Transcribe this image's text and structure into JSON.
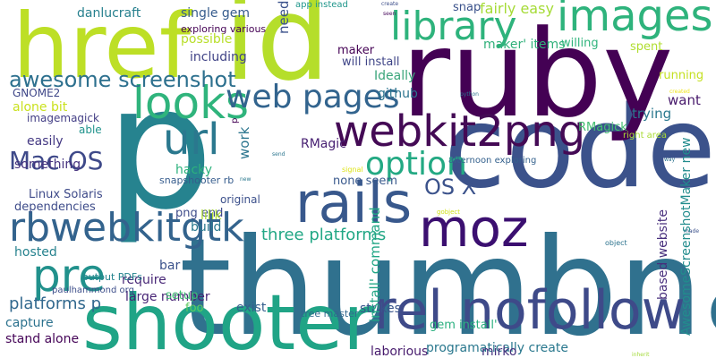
{
  "words": [
    {
      "text": "thumbnail",
      "color": "#30718e"
    },
    {
      "text": "code",
      "color": "#3b528b"
    },
    {
      "text": "ruby",
      "color": "#440154"
    },
    {
      "text": "p",
      "color": "#26838f"
    },
    {
      "text": "shooter",
      "color": "#20a486"
    },
    {
      "text": "id",
      "color": "#b5de2b"
    },
    {
      "text": "href",
      "color": "#bddf26"
    },
    {
      "text": "rel nofollow",
      "color": "#3e4a89"
    },
    {
      "text": "webkit2png",
      "color": "#440a55"
    },
    {
      "text": "images",
      "color": "#2eb37c"
    },
    {
      "text": "library",
      "color": "#2eb37c"
    },
    {
      "text": "url",
      "color": "#2a788e"
    },
    {
      "text": "looks",
      "color": "#2fb47c"
    },
    {
      "text": "rails",
      "color": "#38588c"
    },
    {
      "text": "moz",
      "color": "#3b0f70"
    },
    {
      "text": "rbwebkitgtk",
      "color": "#33638d"
    },
    {
      "text": "pre",
      "color": "#21918c"
    },
    {
      "text": "web pages",
      "color": "#32648e"
    },
    {
      "text": "option",
      "color": "#23a983"
    },
    {
      "text": "awesome screenshot",
      "color": "#2d708e"
    },
    {
      "text": "Mac OS",
      "color": "#3e4989"
    },
    {
      "text": "OS X",
      "color": "#3b528b"
    },
    {
      "text": "three platforms",
      "color": "#22a785"
    },
    {
      "text": "platforms p",
      "color": "#31688e"
    },
    {
      "text": "snap",
      "color": "#3b528b"
    },
    {
      "text": "fairly easy",
      "color": "#a5db36"
    },
    {
      "text": "danlucraft",
      "color": "#27808e"
    },
    {
      "text": "single gem",
      "color": "#365c8d"
    },
    {
      "text": "exploring various",
      "color": "#440154"
    },
    {
      "text": "possible",
      "color": "#b8de29"
    },
    {
      "text": "including",
      "color": "#414487"
    },
    {
      "text": "maker",
      "color": "#440154"
    },
    {
      "text": "maker' items",
      "color": "#30b07a"
    },
    {
      "text": "will install",
      "color": "#404688"
    },
    {
      "text": "Ideally",
      "color": "#3ba67b"
    },
    {
      "text": "github",
      "color": "#2b748e"
    },
    {
      "text": "willing",
      "color": "#2fb47c"
    },
    {
      "text": "spent",
      "color": "#b0dd2f"
    },
    {
      "text": "running",
      "color": "#c4e021"
    },
    {
      "text": "want",
      "color": "#481a6c"
    },
    {
      "text": "trying",
      "color": "#2a788e"
    },
    {
      "text": "RMagick",
      "color": "#43bf71"
    },
    {
      "text": "GNOME2",
      "color": "#3f4788"
    },
    {
      "text": "alone bit",
      "color": "#cae11f"
    },
    {
      "text": "imagemagick",
      "color": "#433e85"
    },
    {
      "text": "able",
      "color": "#20938c"
    },
    {
      "text": "easily",
      "color": "#443983"
    },
    {
      "text": "something",
      "color": "#46337f"
    },
    {
      "text": "Linux Solaris",
      "color": "#3e4a89"
    },
    {
      "text": "dependencies",
      "color": "#3e4c8a"
    },
    {
      "text": "hosted",
      "color": "#26828e"
    },
    {
      "text": "bar",
      "color": "#3b528b"
    },
    {
      "text": "require",
      "color": "#482777"
    },
    {
      "text": "large number",
      "color": "#482576"
    },
    {
      "text": "setup",
      "color": "#3fbc73"
    },
    {
      "text": "foo",
      "color": "#5ec962"
    },
    {
      "text": "exist",
      "color": "#355f8d"
    },
    {
      "text": "capture",
      "color": "#2c728e"
    },
    {
      "text": "stand alone",
      "color": "#450457"
    },
    {
      "text": "strikes",
      "color": "#39558c"
    },
    {
      "text": "gem install'",
      "color": "#2ab07f"
    },
    {
      "text": "laborious",
      "color": "#481c6e"
    },
    {
      "text": "programatically create",
      "color": "#2a788e"
    },
    {
      "text": "mirko",
      "color": "#46327e"
    },
    {
      "text": "hacky",
      "color": "#2db27d"
    },
    {
      "text": "snapshooter rb",
      "color": "#365c8d"
    },
    {
      "text": "png end",
      "color": "#3e4c8a"
    },
    {
      "text": "original",
      "color": "#3c508b"
    },
    {
      "text": "lilik",
      "color": "#addc30"
    },
    {
      "text": "build",
      "color": "#2a788e"
    },
    {
      "text": "RMagic",
      "color": "#482173"
    },
    {
      "text": "none seem",
      "color": "#38588c"
    },
    {
      "text": "afternoon exploring",
      "color": "#34618d"
    },
    {
      "text": "tree master",
      "color": "#31688e"
    },
    {
      "text": "output PDFs",
      "color": "#25848e"
    },
    {
      "text": "paulhammond org",
      "color": "#3d4e8a"
    },
    {
      "text": "app instead",
      "color": "#1f968b"
    },
    {
      "text": "right area",
      "color": "#a8db34"
    },
    {
      "text": "python",
      "color": "#2d718e"
    },
    {
      "text": "gobject",
      "color": "#d2e21b"
    },
    {
      "text": "object",
      "color": "#2c738e"
    },
    {
      "text": "created",
      "color": "#f1e51d"
    },
    {
      "text": "create",
      "color": "#3d4e8a"
    },
    {
      "text": "seen",
      "color": "#450559"
    },
    {
      "text": "send",
      "color": "#2b758e"
    },
    {
      "text": "signal",
      "color": "#dde318"
    },
    {
      "text": "new",
      "color": "#2a788e"
    },
    {
      "text": "way",
      "color": "#2c728e"
    },
    {
      "text": "made",
      "color": "#3b518b"
    },
    {
      "text": "inherit",
      "color": "#a2da37"
    },
    {
      "text": "need",
      "color": "#3b518b"
    },
    {
      "text": "p",
      "color": "#440154"
    },
    {
      "text": "work",
      "color": "#2b758e"
    },
    {
      "text": "install' command",
      "color": "#21a685"
    },
    {
      "text": "based website",
      "color": "#472e7c"
    },
    {
      "text": "AwesomeScreenshotMaker new",
      "color": "#228c8d"
    }
  ]
}
